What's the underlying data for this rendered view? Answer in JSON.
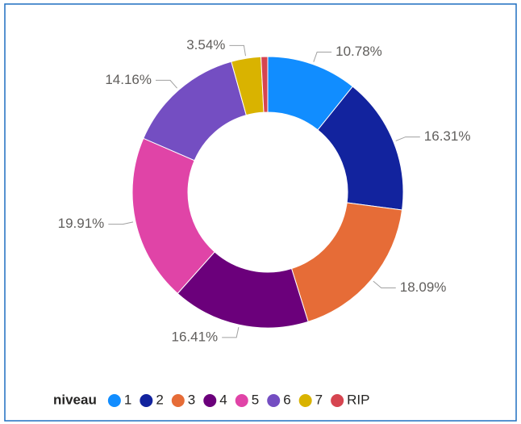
{
  "chart_data": {
    "type": "donut",
    "legend_title": "niveau",
    "categories": [
      "1",
      "2",
      "3",
      "4",
      "5",
      "6",
      "7",
      "RIP"
    ],
    "values": [
      10.78,
      16.31,
      18.09,
      16.41,
      19.91,
      14.16,
      3.54,
      0.8
    ],
    "value_labels": [
      "10.78%",
      "16.31%",
      "18.09%",
      "16.41%",
      "19.91%",
      "14.16%",
      "3.54%",
      null
    ],
    "colors": [
      "#118DFF",
      "#12239E",
      "#E66C37",
      "#6B007B",
      "#E044A7",
      "#744EC2",
      "#D9B300",
      "#D64550"
    ],
    "legend_position": "bottom-left"
  }
}
